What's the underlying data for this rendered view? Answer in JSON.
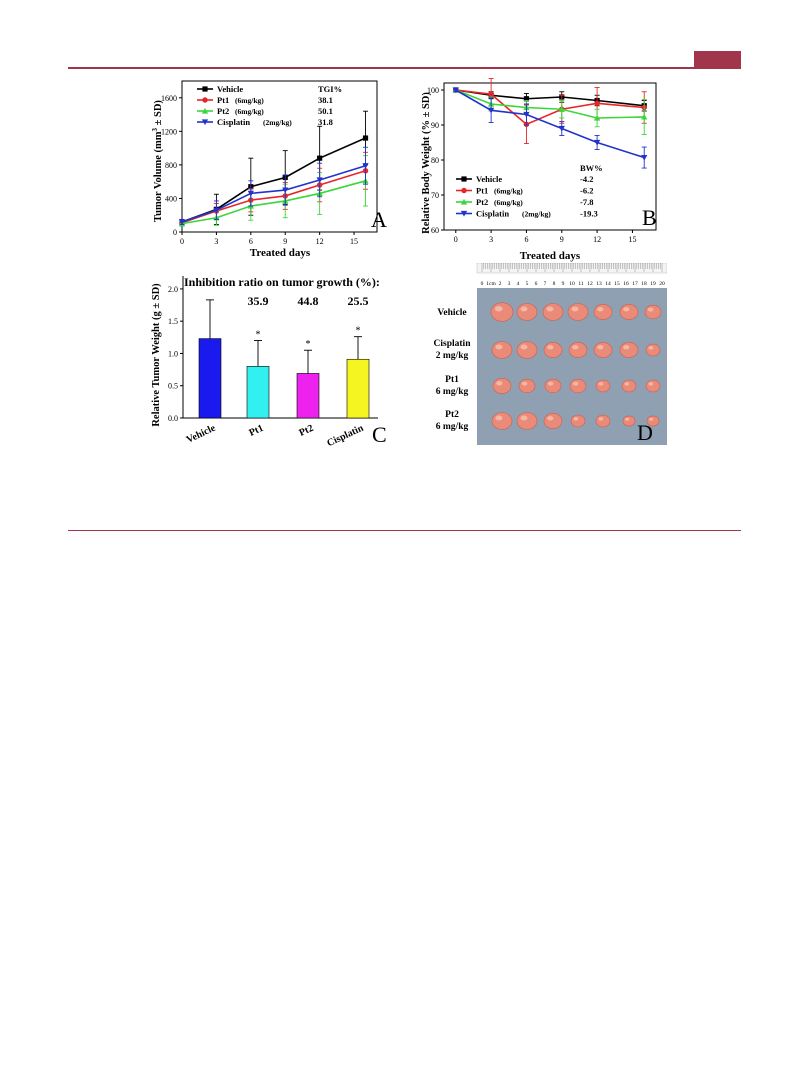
{
  "page": {
    "header_tab_color": "#a0354c"
  },
  "figure": {
    "panel_a": {
      "letter": "A",
      "ylabel": "Tumor Volume (mm",
      "ylabel_sup": "3",
      "ylabel_tail": " ± SD)",
      "xlabel": "Treated days",
      "legend_header": "TGI%",
      "legend": [
        {
          "name": "Vehicle",
          "dose": "",
          "value": "",
          "color": "#000000",
          "marker": "square"
        },
        {
          "name": "Pt1",
          "dose": "(6mg/kg)",
          "value": "38.1",
          "color": "#e8262a",
          "marker": "circle"
        },
        {
          "name": "Pt2",
          "dose": "(6mg/kg)",
          "value": "50.1",
          "color": "#3ad63a",
          "marker": "triangle-up"
        },
        {
          "name": "Cisplatin",
          "dose": "(2mg/kg)",
          "value": "31.8",
          "color": "#2233cc",
          "marker": "triangle-down"
        }
      ],
      "x_ticks": [
        "0",
        "3",
        "6",
        "9",
        "12",
        "15"
      ],
      "y_ticks": [
        "0",
        "400",
        "800",
        "1200",
        "1600"
      ]
    },
    "panel_b": {
      "letter": "B",
      "ylabel": "Relative Body Weight (% ± SD)",
      "xlabel": "Treated days",
      "legend_header": "BW%",
      "legend": [
        {
          "name": "Vehicle",
          "dose": "",
          "value": "-4.2",
          "color": "#000000",
          "marker": "square"
        },
        {
          "name": "Pt1",
          "dose": "(6mg/kg)",
          "value": "-6.2",
          "color": "#e8262a",
          "marker": "circle"
        },
        {
          "name": "Pt2",
          "dose": "(6mg/kg)",
          "value": "-7.8",
          "color": "#3ad63a",
          "marker": "triangle-up"
        },
        {
          "name": "Cisplatin",
          "dose": "(2mg/kg)",
          "value": "-19.3",
          "color": "#2233cc",
          "marker": "triangle-down"
        }
      ],
      "x_ticks": [
        "0",
        "3",
        "6",
        "9",
        "12",
        "15"
      ],
      "y_ticks": [
        "60",
        "70",
        "80",
        "90",
        "100"
      ]
    },
    "panel_c": {
      "letter": "C",
      "title": "Inhibition ratio on tumor growth (%):",
      "ratios": [
        "35.9",
        "44.8",
        "25.5"
      ],
      "ylabel": "Relative Tumor Weight (g ± SD)",
      "y_ticks": [
        "0.0",
        "0.5",
        "1.0",
        "1.5",
        "2.0"
      ],
      "star": "*"
    },
    "panel_d": {
      "letter": "D",
      "ruler_labels": [
        "0",
        "1cm",
        "2",
        "3",
        "4",
        "5",
        "6",
        "7",
        "8",
        "9",
        "10",
        "11",
        "12",
        "13",
        "14",
        "15",
        "16",
        "17",
        "18",
        "19",
        "20"
      ],
      "rows": [
        {
          "line1": "Vehicle",
          "line2": ""
        },
        {
          "line1": "Cisplatin",
          "line2": "2 mg/kg"
        },
        {
          "line1": "Pt1",
          "line2": "6 mg/kg"
        },
        {
          "line1": "Pt2",
          "line2": "6 mg/kg"
        }
      ],
      "tumor_color": "#ea8a78",
      "background_color": "#8fa0b2"
    }
  },
  "chart_data": [
    {
      "type": "line",
      "ylabel": "Tumor Volume (mm3 ± SD)",
      "xlabel": "Treated days",
      "xlim": [
        0,
        17
      ],
      "ylim": [
        0,
        1800
      ],
      "x": [
        0,
        3,
        6,
        9,
        12,
        16
      ],
      "series": [
        {
          "name": "Vehicle",
          "color": "#000000",
          "values": [
            120,
            270,
            540,
            650,
            880,
            1120
          ],
          "err": [
            30,
            180,
            340,
            320,
            380,
            320
          ]
        },
        {
          "name": "Pt1 (6mg/kg)",
          "color": "#e8262a",
          "values": [
            110,
            250,
            380,
            430,
            560,
            730
          ],
          "err": [
            30,
            90,
            140,
            160,
            200,
            220
          ]
        },
        {
          "name": "Pt2 (6mg/kg)",
          "color": "#3ad63a",
          "values": [
            100,
            170,
            310,
            370,
            460,
            610
          ],
          "err": [
            30,
            90,
            170,
            200,
            250,
            300
          ]
        },
        {
          "name": "Cisplatin (2mg/kg)",
          "color": "#2233cc",
          "values": [
            120,
            260,
            460,
            500,
            620,
            790
          ],
          "err": [
            30,
            110,
            150,
            180,
            200,
            220
          ]
        }
      ]
    },
    {
      "type": "line",
      "ylabel": "Relative Body Weight (% ± SD)",
      "xlabel": "Treated days",
      "xlim": [
        -1,
        17
      ],
      "ylim": [
        60,
        102
      ],
      "x": [
        0,
        3,
        6,
        9,
        12,
        16
      ],
      "series": [
        {
          "name": "Vehicle",
          "color": "#000000",
          "values": [
            100,
            98.5,
            97.5,
            98,
            97,
            95.5
          ],
          "err": [
            0.5,
            1,
            1.5,
            1.5,
            1.5,
            1.5
          ]
        },
        {
          "name": "Pt1 (6mg/kg)",
          "color": "#e8262a",
          "values": [
            100,
            98.8,
            90.2,
            94.5,
            96.2,
            95
          ],
          "err": [
            0.5,
            4.5,
            5.5,
            4,
            4.5,
            4.5
          ]
        },
        {
          "name": "Pt2 (6mg/kg)",
          "color": "#3ad63a",
          "values": [
            100,
            96,
            95,
            94.5,
            92,
            92.3
          ],
          "err": [
            0.5,
            2,
            2,
            2.5,
            2.5,
            5
          ]
        },
        {
          "name": "Cisplatin (2mg/kg)",
          "color": "#2233cc",
          "values": [
            100,
            94.2,
            93,
            89,
            85,
            80.7
          ],
          "err": [
            0.5,
            3.5,
            3,
            2,
            2,
            3
          ]
        }
      ]
    },
    {
      "type": "bar",
      "ylabel": "Relative Tumor Weight (g ± SD)",
      "ylim": [
        0,
        2.2
      ],
      "categories": [
        "Vehicle",
        "Pt1",
        "Pt2",
        "Cisplatin"
      ],
      "values": [
        1.23,
        0.8,
        0.69,
        0.91
      ],
      "err": [
        0.6,
        0.4,
        0.36,
        0.35
      ],
      "colors": [
        "#1a1aee",
        "#33f0f0",
        "#ee22ee",
        "#f5f522"
      ]
    }
  ]
}
